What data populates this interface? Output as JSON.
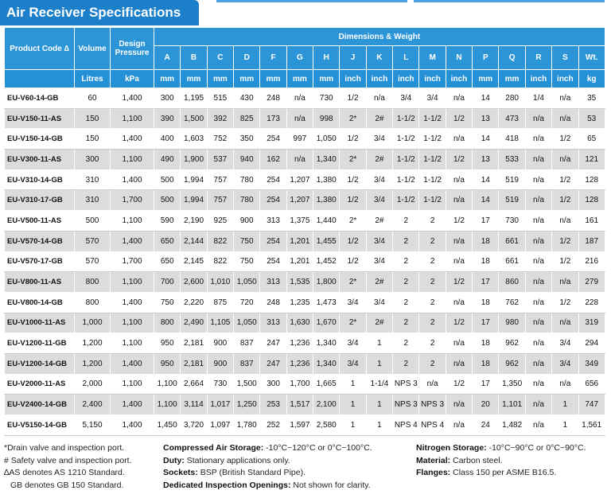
{
  "title": "Air Receiver Specifications",
  "table": {
    "header": {
      "product_code": "Product Code ∆",
      "volume": "Volume",
      "design_pressure": "Design Pressure",
      "dimensions": "Dimensions & Weight",
      "columns": [
        "A",
        "B",
        "C",
        "D",
        "F",
        "G",
        "H",
        "J",
        "K",
        "L",
        "M",
        "N",
        "P",
        "Q",
        "R",
        "S",
        "Wt."
      ]
    },
    "units": [
      "Litres",
      "kPa",
      "mm",
      "mm",
      "mm",
      "mm",
      "mm",
      "mm",
      "mm",
      "inch",
      "inch",
      "inch",
      "inch",
      "inch",
      "mm",
      "mm",
      "inch",
      "inch",
      "kg"
    ],
    "rows": [
      [
        "EU-V60-14-GB",
        "60",
        "1,400",
        "300",
        "1,195",
        "515",
        "430",
        "248",
        "n/a",
        "730",
        "1/2",
        "n/a",
        "3/4",
        "3/4",
        "n/a",
        "14",
        "280",
        "1/4",
        "n/a",
        "35"
      ],
      [
        "EU-V150-11-AS",
        "150",
        "1,100",
        "390",
        "1,500",
        "392",
        "825",
        "173",
        "n/a",
        "998",
        "2*",
        "2#",
        "1-1/2",
        "1-1/2",
        "1/2",
        "13",
        "473",
        "n/a",
        "n/a",
        "53"
      ],
      [
        "EU-V150-14-GB",
        "150",
        "1,400",
        "400",
        "1,603",
        "752",
        "350",
        "254",
        "997",
        "1,050",
        "1/2",
        "3/4",
        "1-1/2",
        "1-1/2",
        "n/a",
        "14",
        "418",
        "n/a",
        "1/2",
        "65"
      ],
      [
        "EU-V300-11-AS",
        "300",
        "1,100",
        "490",
        "1,900",
        "537",
        "940",
        "162",
        "n/a",
        "1,340",
        "2*",
        "2#",
        "1-1/2",
        "1-1/2",
        "1/2",
        "13",
        "533",
        "n/a",
        "n/a",
        "121"
      ],
      [
        "EU-V310-14-GB",
        "310",
        "1,400",
        "500",
        "1,994",
        "757",
        "780",
        "254",
        "1,207",
        "1,380",
        "1/2",
        "3/4",
        "1-1/2",
        "1-1/2",
        "n/a",
        "14",
        "519",
        "n/a",
        "1/2",
        "128"
      ],
      [
        "EU-V310-17-GB",
        "310",
        "1,700",
        "500",
        "1,994",
        "757",
        "780",
        "254",
        "1,207",
        "1,380",
        "1/2",
        "3/4",
        "1-1/2",
        "1-1/2",
        "n/a",
        "14",
        "519",
        "n/a",
        "1/2",
        "128"
      ],
      [
        "EU-V500-11-AS",
        "500",
        "1,100",
        "590",
        "2,190",
        "925",
        "900",
        "313",
        "1,375",
        "1,440",
        "2*",
        "2#",
        "2",
        "2",
        "1/2",
        "17",
        "730",
        "n/a",
        "n/a",
        "161"
      ],
      [
        "EU-V570-14-GB",
        "570",
        "1,400",
        "650",
        "2,144",
        "822",
        "750",
        "254",
        "1,201",
        "1,455",
        "1/2",
        "3/4",
        "2",
        "2",
        "n/a",
        "18",
        "661",
        "n/a",
        "1/2",
        "187"
      ],
      [
        "EU-V570-17-GB",
        "570",
        "1,700",
        "650",
        "2,145",
        "822",
        "750",
        "254",
        "1,201",
        "1,452",
        "1/2",
        "3/4",
        "2",
        "2",
        "n/a",
        "18",
        "661",
        "n/a",
        "1/2",
        "216"
      ],
      [
        "EU-V800-11-AS",
        "800",
        "1,100",
        "700",
        "2,600",
        "1,010",
        "1,050",
        "313",
        "1,535",
        "1,800",
        "2*",
        "2#",
        "2",
        "2",
        "1/2",
        "17",
        "860",
        "n/a",
        "n/a",
        "279"
      ],
      [
        "EU-V800-14-GB",
        "800",
        "1,400",
        "750",
        "2,220",
        "875",
        "720",
        "248",
        "1,235",
        "1,473",
        "3/4",
        "3/4",
        "2",
        "2",
        "n/a",
        "18",
        "762",
        "n/a",
        "1/2",
        "228"
      ],
      [
        "EU-V1000-11-AS",
        "1,000",
        "1,100",
        "800",
        "2,490",
        "1,105",
        "1,050",
        "313",
        "1,630",
        "1,670",
        "2*",
        "2#",
        "2",
        "2",
        "1/2",
        "17",
        "980",
        "n/a",
        "n/a",
        "319"
      ],
      [
        "EU-V1200-11-GB",
        "1,200",
        "1,100",
        "950",
        "2,181",
        "900",
        "837",
        "247",
        "1,236",
        "1,340",
        "3/4",
        "1",
        "2",
        "2",
        "n/a",
        "18",
        "962",
        "n/a",
        "3/4",
        "294"
      ],
      [
        "EU-V1200-14-GB",
        "1,200",
        "1,400",
        "950",
        "2,181",
        "900",
        "837",
        "247",
        "1,236",
        "1,340",
        "3/4",
        "1",
        "2",
        "2",
        "n/a",
        "18",
        "962",
        "n/a",
        "3/4",
        "349"
      ],
      [
        "EU-V2000-11-AS",
        "2,000",
        "1,100",
        "1,100",
        "2,664",
        "730",
        "1,500",
        "300",
        "1,700",
        "1,665",
        "1",
        "1-1/4",
        "NPS 3",
        "n/a",
        "1/2",
        "17",
        "1,350",
        "n/a",
        "n/a",
        "656"
      ],
      [
        "EU-V2400-14-GB",
        "2,400",
        "1,400",
        "1,100",
        "3,114",
        "1,017",
        "1,250",
        "253",
        "1,517",
        "2,100",
        "1",
        "1",
        "NPS 3",
        "NPS 3",
        "n/a",
        "20",
        "1,101",
        "n/a",
        "1",
        "747"
      ],
      [
        "EU-V5150-14-GB",
        "5,150",
        "1,400",
        "1,450",
        "3,720",
        "1,097",
        "1,780",
        "252",
        "1,597",
        "2,580",
        "1",
        "1",
        "NPS 4",
        "NPS 4",
        "n/a",
        "24",
        "1,482",
        "n/a",
        "1",
        "1,561"
      ]
    ]
  },
  "notes": {
    "symbols": [
      "*Drain valve and inspection port.",
      "# Safety valve and inspection port.",
      "∆AS denotes AS 1210 Standard.",
      "GB denotes GB 150 Standard."
    ],
    "middle": [
      {
        "label": "Compressed Air Storage:",
        "text": "-10°C~120°C or 0°C~100°C."
      },
      {
        "label": "Duty:",
        "text": "Stationary applications only."
      },
      {
        "label": "Sockets:",
        "text": "BSP (British Standard Pipe)."
      },
      {
        "label": "Dedicated Inspection Openings:",
        "text": "Not shown for clarity."
      }
    ],
    "right": [
      {
        "label": "Nitrogen Storage:",
        "text": "-10°C~90°C or 0°C~90°C."
      },
      {
        "label": "Material:",
        "text": "Carbon steel."
      },
      {
        "label": "Flanges:",
        "text": "Class 150 per ASME B16.5."
      }
    ]
  }
}
